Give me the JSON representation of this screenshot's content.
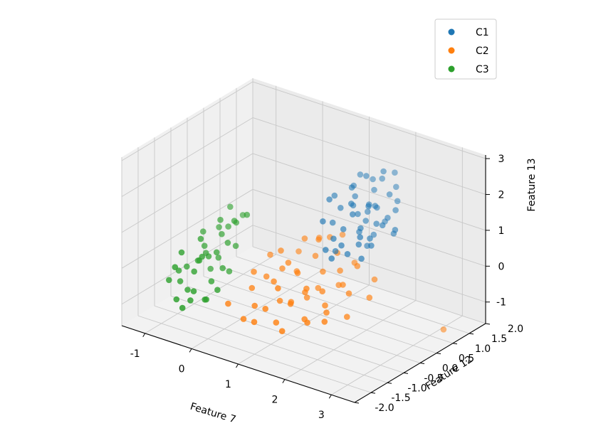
{
  "chart_data": {
    "type": "scatter",
    "projection": "3d",
    "title": "",
    "xlabel": "Feature 7",
    "ylabel": "Feature 12",
    "zlabel": "Feature 13",
    "xlim": [
      -1.5,
      3.5
    ],
    "ylim": [
      -2.0,
      2.0
    ],
    "zlim": [
      -1.6,
      3.1
    ],
    "xticks": [
      {
        "value": -1,
        "label": "-1"
      },
      {
        "value": 0,
        "label": "0"
      },
      {
        "value": 1,
        "label": "1"
      },
      {
        "value": 2,
        "label": "2"
      },
      {
        "value": 3,
        "label": "3"
      }
    ],
    "yticks": [
      {
        "value": -2.0,
        "label": "-2.0"
      },
      {
        "value": -1.5,
        "label": "-1.5"
      },
      {
        "value": -1.0,
        "label": "-1.0"
      },
      {
        "value": -0.5,
        "label": "-0.5"
      },
      {
        "value": 0.0,
        "label": "0.0"
      },
      {
        "value": 0.5,
        "label": "0.5"
      },
      {
        "value": 1.0,
        "label": "1.0"
      },
      {
        "value": 1.5,
        "label": "1.5"
      },
      {
        "value": 2.0,
        "label": "2.0"
      }
    ],
    "zticks": [
      {
        "value": -1,
        "label": "-1"
      },
      {
        "value": 0,
        "label": "0"
      },
      {
        "value": 1,
        "label": "1"
      },
      {
        "value": 2,
        "label": "2"
      },
      {
        "value": 3,
        "label": "3"
      }
    ],
    "grid": true,
    "legend_position": "top-right",
    "series": [
      {
        "name": "C1",
        "color": "#1f77b4",
        "points": [
          [
            1.6,
            0.8,
            1.3
          ],
          [
            1.7,
            1.0,
            1.5
          ],
          [
            1.8,
            0.6,
            1.1
          ],
          [
            1.9,
            0.9,
            1.6
          ],
          [
            2.0,
            1.2,
            1.8
          ],
          [
            1.5,
            0.5,
            1.0
          ],
          [
            1.6,
            1.3,
            1.7
          ],
          [
            1.7,
            0.7,
            0.9
          ],
          [
            1.8,
            1.1,
            1.4
          ],
          [
            1.9,
            0.4,
            0.8
          ],
          [
            2.0,
            0.8,
            1.2
          ],
          [
            2.1,
            1.0,
            1.3
          ],
          [
            1.4,
            0.9,
            1.9
          ],
          [
            1.5,
            1.2,
            2.1
          ],
          [
            1.6,
            0.3,
            0.7
          ],
          [
            1.7,
            1.4,
            2.0
          ],
          [
            1.8,
            0.2,
            0.6
          ],
          [
            1.9,
            1.5,
            2.2
          ],
          [
            2.0,
            0.6,
            0.9
          ],
          [
            2.1,
            1.3,
            1.6
          ],
          [
            1.3,
            0.7,
            1.4
          ],
          [
            1.4,
            1.0,
            1.6
          ],
          [
            1.5,
            0.2,
            0.9
          ],
          [
            1.6,
            1.1,
            1.2
          ],
          [
            1.7,
            0.5,
            1.5
          ],
          [
            1.8,
            0.8,
            0.5
          ],
          [
            1.9,
            1.2,
            1.0
          ],
          [
            2.0,
            0.3,
            1.1
          ],
          [
            1.2,
            0.6,
            1.0
          ],
          [
            1.3,
            1.1,
            1.8
          ],
          [
            1.4,
            0.4,
            0.4
          ],
          [
            1.5,
            0.8,
            1.5
          ],
          [
            1.6,
            0.6,
            1.7
          ],
          [
            1.7,
            0.9,
            1.1
          ],
          [
            1.8,
            1.0,
            0.7
          ],
          [
            2.2,
            1.1,
            1.5
          ],
          [
            2.3,
            0.9,
            1.0
          ],
          [
            1.1,
            0.8,
            1.6
          ],
          [
            1.2,
            0.3,
            1.2
          ],
          [
            2.1,
            0.5,
            0.8
          ],
          [
            2.2,
            0.7,
            1.3
          ],
          [
            2.4,
            0.8,
            1.2
          ],
          [
            1.3,
            1.3,
            2.0
          ],
          [
            1.4,
            0.1,
            0.6
          ],
          [
            1.5,
            1.4,
            1.9
          ],
          [
            1.6,
            0.0,
            0.5
          ],
          [
            2.0,
            1.4,
            1.9
          ],
          [
            2.1,
            0.2,
            0.6
          ],
          [
            1.9,
            0.7,
            1.7
          ],
          [
            1.8,
            1.3,
            2.3
          ],
          [
            1.2,
            0.5,
            1.7
          ]
        ]
      },
      {
        "name": "C2",
        "color": "#ff7f0e",
        "points": [
          [
            0.5,
            -0.2,
            -0.5
          ],
          [
            0.8,
            0.1,
            -0.3
          ],
          [
            1.0,
            -0.4,
            -0.8
          ],
          [
            1.2,
            0.3,
            -0.2
          ],
          [
            0.6,
            -0.6,
            -1.0
          ],
          [
            0.9,
            0.5,
            0.0
          ],
          [
            1.1,
            -0.1,
            -0.6
          ],
          [
            1.3,
            0.6,
            0.2
          ],
          [
            0.4,
            0.2,
            -0.4
          ],
          [
            0.7,
            -0.3,
            -0.9
          ],
          [
            1.4,
            0.0,
            -0.5
          ],
          [
            1.5,
            0.4,
            -0.1
          ],
          [
            0.3,
            -0.5,
            -1.1
          ],
          [
            0.6,
            0.6,
            0.3
          ],
          [
            1.6,
            -0.2,
            -0.7
          ],
          [
            0.2,
            0.0,
            -0.6
          ],
          [
            0.9,
            -0.7,
            -1.2
          ],
          [
            1.7,
            0.2,
            -0.3
          ],
          [
            1.0,
            0.8,
            0.4
          ],
          [
            0.5,
            -0.8,
            -1.3
          ],
          [
            1.8,
            0.5,
            0.1
          ],
          [
            0.8,
            -0.5,
            -0.4
          ],
          [
            1.2,
            0.9,
            0.5
          ],
          [
            0.1,
            -0.3,
            -0.8
          ],
          [
            2.0,
            -0.1,
            -0.9
          ],
          [
            1.1,
            0.3,
            -0.7
          ],
          [
            0.4,
            0.7,
            -0.2
          ],
          [
            1.5,
            -0.6,
            -1.0
          ],
          [
            0.7,
            0.9,
            0.2
          ],
          [
            1.9,
            0.1,
            -0.4
          ],
          [
            1.3,
            -0.4,
            -1.1
          ],
          [
            0.0,
            0.4,
            -0.3
          ],
          [
            1.6,
            0.7,
            0.0
          ],
          [
            0.2,
            -0.7,
            -1.4
          ],
          [
            2.2,
            0.3,
            -0.5
          ],
          [
            0.6,
            0.1,
            -0.1
          ],
          [
            1.4,
            0.5,
            -0.6
          ],
          [
            0.8,
            -0.1,
            -1.0
          ],
          [
            -0.2,
            -0.6,
            -1.2
          ],
          [
            3.3,
            1.0,
            -1.3
          ],
          [
            1.0,
            0.1,
            -0.9
          ],
          [
            1.2,
            -0.2,
            -0.4
          ],
          [
            0.9,
            0.6,
            0.4
          ],
          [
            1.7,
            -0.3,
            -0.8
          ],
          [
            0.3,
            0.3,
            0.0
          ],
          [
            1.1,
            -0.8,
            -1.3
          ],
          [
            2.1,
            0.6,
            -0.2
          ],
          [
            0.5,
            0.5,
            -0.6
          ],
          [
            1.8,
            -0.5,
            -0.9
          ],
          [
            0.0,
            -0.1,
            -0.5
          ]
        ]
      },
      {
        "name": "C3",
        "color": "#2ca02c",
        "points": [
          [
            -1.0,
            -0.5,
            -0.7
          ],
          [
            -0.9,
            -0.2,
            -0.4
          ],
          [
            -0.8,
            -0.8,
            -1.0
          ],
          [
            -1.1,
            0.0,
            -0.5
          ],
          [
            -0.7,
            -0.4,
            -0.9
          ],
          [
            -1.2,
            -0.6,
            -0.2
          ],
          [
            -0.9,
            0.2,
            0.0
          ],
          [
            -0.6,
            -0.7,
            -1.2
          ],
          [
            -1.0,
            0.3,
            0.3
          ],
          [
            -0.8,
            -0.1,
            -0.3
          ],
          [
            -1.3,
            -0.3,
            -0.8
          ],
          [
            -0.7,
            0.1,
            -0.1
          ],
          [
            -1.1,
            -0.9,
            -1.3
          ],
          [
            -0.9,
            0.4,
            0.1
          ],
          [
            -0.6,
            -0.2,
            -0.6
          ],
          [
            -1.2,
            0.1,
            -0.4
          ],
          [
            -1.0,
            -0.7,
            -1.1
          ],
          [
            -0.8,
            0.5,
            0.2
          ],
          [
            -1.4,
            -0.4,
            -0.9
          ],
          [
            -0.5,
            -0.5,
            -1.0
          ],
          [
            -1.1,
            -0.2,
            -0.6
          ],
          [
            -0.7,
            0.3,
            0.4
          ],
          [
            -0.9,
            -1.0,
            -1.4
          ],
          [
            -1.3,
            0.2,
            -0.1
          ],
          [
            -0.6,
            0.0,
            -0.8
          ],
          [
            -1.0,
            0.6,
            0.5
          ],
          [
            -0.8,
            -0.9,
            -1.2
          ],
          [
            -1.2,
            -0.1,
            -0.7
          ],
          [
            -0.5,
            0.4,
            0.6
          ],
          [
            -1.4,
            -0.7,
            -1.0
          ],
          [
            -0.9,
            -0.4,
            -0.3
          ],
          [
            -1.1,
            0.4,
            0.0
          ],
          [
            -0.7,
            -0.6,
            -1.3
          ],
          [
            -1.0,
            0.0,
            -0.9
          ],
          [
            -0.6,
            0.2,
            -0.2
          ],
          [
            -1.2,
            -0.8,
            -0.5
          ],
          [
            -0.8,
            0.7,
            0.3
          ],
          [
            -1.3,
            -0.5,
            -1.1
          ],
          [
            -0.9,
            0.1,
            -0.6
          ],
          [
            -1.0,
            -0.3,
            0.1
          ]
        ]
      }
    ]
  }
}
